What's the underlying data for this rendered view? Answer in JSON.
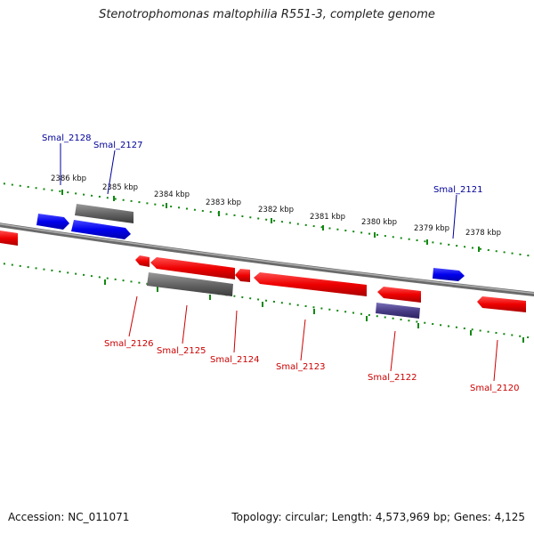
{
  "title": "Stenotrophomonas maltophilia R551-3, complete genome",
  "footer": {
    "accession": "Accession: NC_011071",
    "summary": "Topology: circular; Length: 4,573,969 bp; Genes: 4,125"
  },
  "colors": {
    "forward_gene": "#0000ee",
    "reverse_gene": "#ee0000",
    "pseudo_gene": "#666666",
    "other_gene": "#4a3f88",
    "backbone": "#888888",
    "tick": "#118811",
    "forward_label": "#000099",
    "reverse_label": "#cc0000"
  },
  "ticks": [
    "2386 kbp",
    "2385 kbp",
    "2384 kbp",
    "2383 kbp",
    "2382 kbp",
    "2381 kbp",
    "2380 kbp",
    "2379 kbp",
    "2378 kbp"
  ],
  "genes_forward": [
    {
      "label": "Smal_2128"
    },
    {
      "label": "Smal_2127"
    },
    {
      "label": "Smal_2121"
    }
  ],
  "genes_reverse": [
    {
      "label": "Smal_2126"
    },
    {
      "label": "Smal_2125"
    },
    {
      "label": "Smal_2124"
    },
    {
      "label": "Smal_2123"
    },
    {
      "label": "Smal_2122"
    },
    {
      "label": "Smal_2120"
    }
  ]
}
